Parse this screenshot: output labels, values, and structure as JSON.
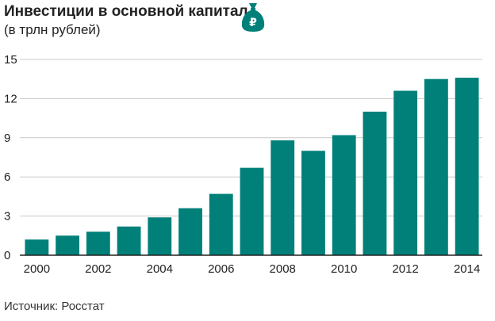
{
  "header": {
    "title": "Инвестиции в основной капитал",
    "subtitle": "(в трлн рублей)",
    "icon": "money-bag-icon",
    "icon_symbol": "₽"
  },
  "footer": {
    "source": "Источник: Росстат"
  },
  "colors": {
    "bar": "#008079",
    "grid": "#c8c8c8",
    "axis": "#222222",
    "text": "#222222"
  },
  "chart_data": {
    "type": "bar",
    "title": "Инвестиции в основной капитал",
    "subtitle": "(в трлн рублей)",
    "xlabel": "",
    "ylabel": "",
    "unit": "трлн рублей",
    "categories": [
      "2000",
      "2001",
      "2002",
      "2003",
      "2004",
      "2005",
      "2006",
      "2007",
      "2008",
      "2009",
      "2010",
      "2011",
      "2012",
      "2013",
      "2014"
    ],
    "x_tick_labels": [
      "2000",
      "2002",
      "2004",
      "2006",
      "2008",
      "2010",
      "2012",
      "2014"
    ],
    "values": [
      1.2,
      1.5,
      1.8,
      2.2,
      2.9,
      3.6,
      4.7,
      6.7,
      8.8,
      8.0,
      9.2,
      11.0,
      12.6,
      13.5,
      13.6
    ],
    "ylim": [
      0,
      15
    ],
    "yticks": [
      0,
      3,
      6,
      9,
      12,
      15
    ],
    "grid": true,
    "legend": "none",
    "source": "Источник: Росстат"
  }
}
